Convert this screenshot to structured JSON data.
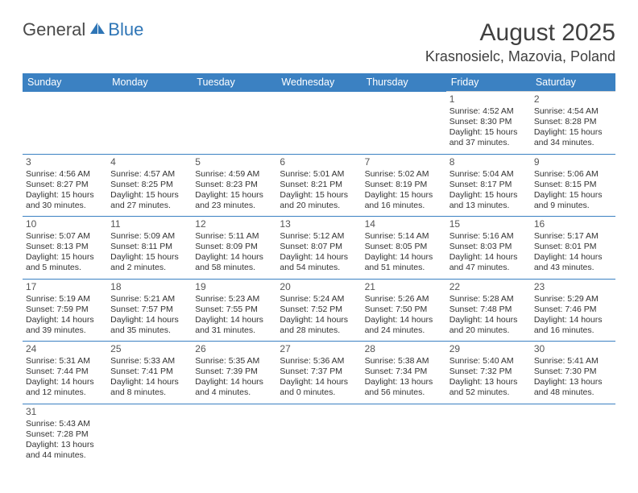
{
  "brand": {
    "word1": "General",
    "word2": "Blue"
  },
  "title": "August 2025",
  "location": "Krasnosielc, Mazovia, Poland",
  "colors": {
    "header_bg": "#3b81c2",
    "header_text": "#ffffff",
    "row_divider": "#3b81c2",
    "cell_top_divider": "#d6d6d6",
    "logo_gray": "#4a4a4a",
    "logo_blue": "#2e75b6"
  },
  "typography": {
    "title_fontsize_pt": 22,
    "location_fontsize_pt": 14,
    "header_cell_fontsize_pt": 9.5,
    "body_fontsize_pt": 8
  },
  "dayHeaders": [
    "Sunday",
    "Monday",
    "Tuesday",
    "Wednesday",
    "Thursday",
    "Friday",
    "Saturday"
  ],
  "weeks": [
    [
      null,
      null,
      null,
      null,
      null,
      {
        "n": "1",
        "sr": "Sunrise: 4:52 AM",
        "ss": "Sunset: 8:30 PM",
        "d1": "Daylight: 15 hours",
        "d2": "and 37 minutes."
      },
      {
        "n": "2",
        "sr": "Sunrise: 4:54 AM",
        "ss": "Sunset: 8:28 PM",
        "d1": "Daylight: 15 hours",
        "d2": "and 34 minutes."
      }
    ],
    [
      {
        "n": "3",
        "sr": "Sunrise: 4:56 AM",
        "ss": "Sunset: 8:27 PM",
        "d1": "Daylight: 15 hours",
        "d2": "and 30 minutes."
      },
      {
        "n": "4",
        "sr": "Sunrise: 4:57 AM",
        "ss": "Sunset: 8:25 PM",
        "d1": "Daylight: 15 hours",
        "d2": "and 27 minutes."
      },
      {
        "n": "5",
        "sr": "Sunrise: 4:59 AM",
        "ss": "Sunset: 8:23 PM",
        "d1": "Daylight: 15 hours",
        "d2": "and 23 minutes."
      },
      {
        "n": "6",
        "sr": "Sunrise: 5:01 AM",
        "ss": "Sunset: 8:21 PM",
        "d1": "Daylight: 15 hours",
        "d2": "and 20 minutes."
      },
      {
        "n": "7",
        "sr": "Sunrise: 5:02 AM",
        "ss": "Sunset: 8:19 PM",
        "d1": "Daylight: 15 hours",
        "d2": "and 16 minutes."
      },
      {
        "n": "8",
        "sr": "Sunrise: 5:04 AM",
        "ss": "Sunset: 8:17 PM",
        "d1": "Daylight: 15 hours",
        "d2": "and 13 minutes."
      },
      {
        "n": "9",
        "sr": "Sunrise: 5:06 AM",
        "ss": "Sunset: 8:15 PM",
        "d1": "Daylight: 15 hours",
        "d2": "and 9 minutes."
      }
    ],
    [
      {
        "n": "10",
        "sr": "Sunrise: 5:07 AM",
        "ss": "Sunset: 8:13 PM",
        "d1": "Daylight: 15 hours",
        "d2": "and 5 minutes."
      },
      {
        "n": "11",
        "sr": "Sunrise: 5:09 AM",
        "ss": "Sunset: 8:11 PM",
        "d1": "Daylight: 15 hours",
        "d2": "and 2 minutes."
      },
      {
        "n": "12",
        "sr": "Sunrise: 5:11 AM",
        "ss": "Sunset: 8:09 PM",
        "d1": "Daylight: 14 hours",
        "d2": "and 58 minutes."
      },
      {
        "n": "13",
        "sr": "Sunrise: 5:12 AM",
        "ss": "Sunset: 8:07 PM",
        "d1": "Daylight: 14 hours",
        "d2": "and 54 minutes."
      },
      {
        "n": "14",
        "sr": "Sunrise: 5:14 AM",
        "ss": "Sunset: 8:05 PM",
        "d1": "Daylight: 14 hours",
        "d2": "and 51 minutes."
      },
      {
        "n": "15",
        "sr": "Sunrise: 5:16 AM",
        "ss": "Sunset: 8:03 PM",
        "d1": "Daylight: 14 hours",
        "d2": "and 47 minutes."
      },
      {
        "n": "16",
        "sr": "Sunrise: 5:17 AM",
        "ss": "Sunset: 8:01 PM",
        "d1": "Daylight: 14 hours",
        "d2": "and 43 minutes."
      }
    ],
    [
      {
        "n": "17",
        "sr": "Sunrise: 5:19 AM",
        "ss": "Sunset: 7:59 PM",
        "d1": "Daylight: 14 hours",
        "d2": "and 39 minutes."
      },
      {
        "n": "18",
        "sr": "Sunrise: 5:21 AM",
        "ss": "Sunset: 7:57 PM",
        "d1": "Daylight: 14 hours",
        "d2": "and 35 minutes."
      },
      {
        "n": "19",
        "sr": "Sunrise: 5:23 AM",
        "ss": "Sunset: 7:55 PM",
        "d1": "Daylight: 14 hours",
        "d2": "and 31 minutes."
      },
      {
        "n": "20",
        "sr": "Sunrise: 5:24 AM",
        "ss": "Sunset: 7:52 PM",
        "d1": "Daylight: 14 hours",
        "d2": "and 28 minutes."
      },
      {
        "n": "21",
        "sr": "Sunrise: 5:26 AM",
        "ss": "Sunset: 7:50 PM",
        "d1": "Daylight: 14 hours",
        "d2": "and 24 minutes."
      },
      {
        "n": "22",
        "sr": "Sunrise: 5:28 AM",
        "ss": "Sunset: 7:48 PM",
        "d1": "Daylight: 14 hours",
        "d2": "and 20 minutes."
      },
      {
        "n": "23",
        "sr": "Sunrise: 5:29 AM",
        "ss": "Sunset: 7:46 PM",
        "d1": "Daylight: 14 hours",
        "d2": "and 16 minutes."
      }
    ],
    [
      {
        "n": "24",
        "sr": "Sunrise: 5:31 AM",
        "ss": "Sunset: 7:44 PM",
        "d1": "Daylight: 14 hours",
        "d2": "and 12 minutes."
      },
      {
        "n": "25",
        "sr": "Sunrise: 5:33 AM",
        "ss": "Sunset: 7:41 PM",
        "d1": "Daylight: 14 hours",
        "d2": "and 8 minutes."
      },
      {
        "n": "26",
        "sr": "Sunrise: 5:35 AM",
        "ss": "Sunset: 7:39 PM",
        "d1": "Daylight: 14 hours",
        "d2": "and 4 minutes."
      },
      {
        "n": "27",
        "sr": "Sunrise: 5:36 AM",
        "ss": "Sunset: 7:37 PM",
        "d1": "Daylight: 14 hours",
        "d2": "and 0 minutes."
      },
      {
        "n": "28",
        "sr": "Sunrise: 5:38 AM",
        "ss": "Sunset: 7:34 PM",
        "d1": "Daylight: 13 hours",
        "d2": "and 56 minutes."
      },
      {
        "n": "29",
        "sr": "Sunrise: 5:40 AM",
        "ss": "Sunset: 7:32 PM",
        "d1": "Daylight: 13 hours",
        "d2": "and 52 minutes."
      },
      {
        "n": "30",
        "sr": "Sunrise: 5:41 AM",
        "ss": "Sunset: 7:30 PM",
        "d1": "Daylight: 13 hours",
        "d2": "and 48 minutes."
      }
    ],
    [
      {
        "n": "31",
        "sr": "Sunrise: 5:43 AM",
        "ss": "Sunset: 7:28 PM",
        "d1": "Daylight: 13 hours",
        "d2": "and 44 minutes."
      },
      null,
      null,
      null,
      null,
      null,
      null
    ]
  ]
}
